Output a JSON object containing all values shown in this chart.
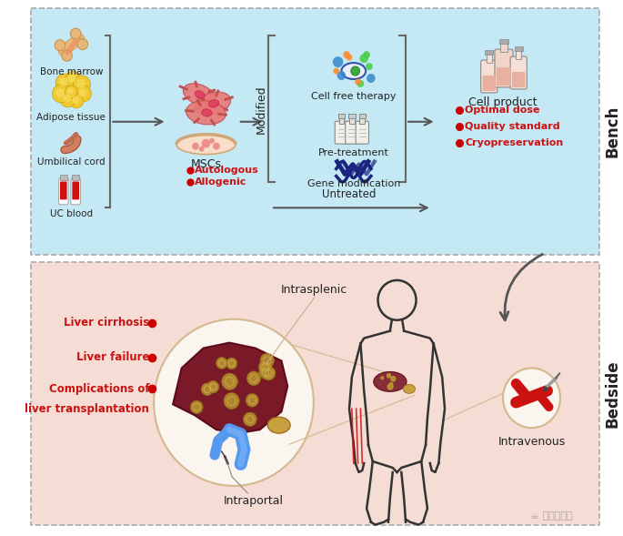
{
  "fig_width": 6.85,
  "fig_height": 5.89,
  "dpi": 100,
  "top_panel_color": "#c5e8f5",
  "bottom_panel_color": "#f5ddd5",
  "border_color": "#aaaaaa",
  "white_bg": "#ffffff",
  "bench_label": "Bench",
  "bedside_label": "Bedside",
  "top_sources": [
    "Bone marrow",
    "Adipose tissue",
    "Umbilical cord",
    "UC blood"
  ],
  "mscs_label": "MSCs",
  "mscs_bullets": [
    "Autologous",
    "Allogenic"
  ],
  "modified_label": "Modified",
  "untreated_label": "Untreated",
  "modified_items": [
    "Cell free therapy",
    "Pre-treatment",
    "Gene modification"
  ],
  "cell_product_label": "Cell product",
  "cell_product_bullets": [
    "Optimal dose",
    "Quality standard",
    "Cryopreservation"
  ],
  "bedside_bullets": [
    "Liver cirrhosis",
    "Liver failure",
    "Complications of",
    "liver transplantation"
  ],
  "intrasplenic_label": "Intrasplenic",
  "intraportal_label": "Intraportal",
  "intravenous_label": "Intravenous",
  "red_color": "#cc1111",
  "bullet_red": "#cc0000",
  "arrow_color": "#555555",
  "text_color": "#222222",
  "bracket_color": "#666666",
  "navy_blue": "#1a2580",
  "bone_color": "#e8b87a",
  "adipose_color": "#f0c830",
  "liver_color": "#7a1a28",
  "bile_color": "#5599ee"
}
